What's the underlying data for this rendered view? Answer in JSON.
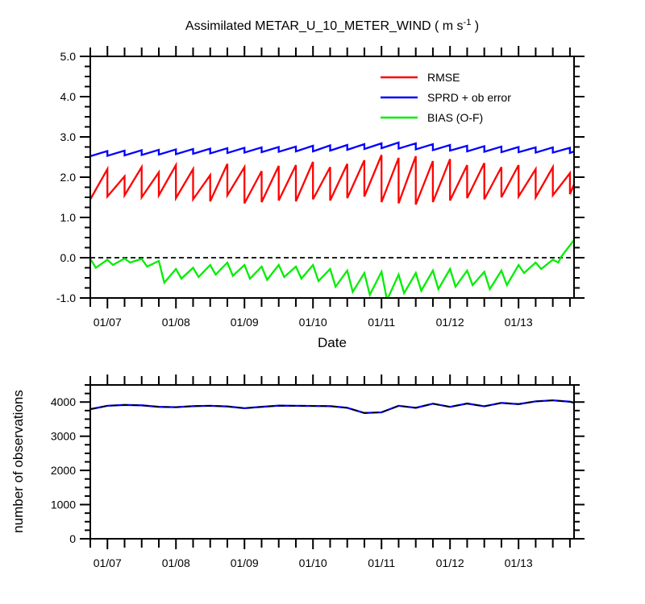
{
  "title": {
    "prefix": "Assimilated METAR_U_10_METER_WIND ( m s",
    "sup": "-1",
    "suffix": " )"
  },
  "legend": {
    "position": "upper-right-inside",
    "items": [
      {
        "label": "RMSE",
        "color": "#ff0000"
      },
      {
        "label": "SPRD + ob error",
        "color": "#0000ff"
      },
      {
        "label": "BIAS (O-F)",
        "color": "#00ee00"
      }
    ]
  },
  "chart_data": [
    {
      "type": "line",
      "panel": "top",
      "title": "Assimilated METAR_U_10_METER_WIND ( m s-1 )",
      "xlabel": "Date",
      "x_unit": "days relative to 01/07, 6-hourly assimilation cycles",
      "xlim": [
        -0.25,
        6.81
      ],
      "ylim": [
        -1.0,
        5.0
      ],
      "x_major_ticks": [
        0,
        1,
        2,
        3,
        4,
        5,
        6
      ],
      "x_tick_labels": [
        "01/07",
        "01/08",
        "01/09",
        "01/10",
        "01/11",
        "01/12",
        "01/13"
      ],
      "x_minor_step": 0.25,
      "y_major_ticks": [
        -1.0,
        0.0,
        1.0,
        2.0,
        3.0,
        4.0,
        5.0
      ],
      "y_tick_labels": [
        "-1.0",
        "0.0",
        "1.0",
        "2.0",
        "3.0",
        "4.0",
        "5.0"
      ],
      "y_minor_step": 0.25,
      "grid": false,
      "reference_line": {
        "y": 0.0,
        "style": "dashed",
        "color": "#000000"
      },
      "series": [
        {
          "name": "RMSE",
          "color": "#ff0000",
          "style": "solid",
          "points": [
            [
              -0.25,
              1.45
            ],
            [
              0,
              2.2
            ],
            [
              0,
              1.52
            ],
            [
              0.25,
              2.02
            ],
            [
              0.25,
              1.55
            ],
            [
              0.5,
              2.25
            ],
            [
              0.5,
              1.5
            ],
            [
              0.75,
              2.12
            ],
            [
              0.75,
              1.55
            ],
            [
              1,
              2.3
            ],
            [
              1,
              1.48
            ],
            [
              1.25,
              2.2
            ],
            [
              1.25,
              1.45
            ],
            [
              1.5,
              2.05
            ],
            [
              1.5,
              1.4
            ],
            [
              1.75,
              2.33
            ],
            [
              1.75,
              1.55
            ],
            [
              2,
              2.25
            ],
            [
              2,
              1.35
            ],
            [
              2.25,
              2.15
            ],
            [
              2.25,
              1.38
            ],
            [
              2.5,
              2.28
            ],
            [
              2.5,
              1.42
            ],
            [
              2.75,
              2.3
            ],
            [
              2.75,
              1.4
            ],
            [
              3,
              2.38
            ],
            [
              3,
              1.45
            ],
            [
              3.25,
              2.25
            ],
            [
              3.25,
              1.42
            ],
            [
              3.5,
              2.33
            ],
            [
              3.5,
              1.48
            ],
            [
              3.75,
              2.42
            ],
            [
              3.75,
              1.52
            ],
            [
              4,
              2.55
            ],
            [
              4,
              1.38
            ],
            [
              4.25,
              2.48
            ],
            [
              4.25,
              1.35
            ],
            [
              4.5,
              2.52
            ],
            [
              4.5,
              1.32
            ],
            [
              4.75,
              2.4
            ],
            [
              4.75,
              1.38
            ],
            [
              5,
              2.45
            ],
            [
              5,
              1.42
            ],
            [
              5.25,
              2.3
            ],
            [
              5.25,
              1.48
            ],
            [
              5.5,
              2.35
            ],
            [
              5.5,
              1.45
            ],
            [
              5.75,
              2.25
            ],
            [
              5.75,
              1.5
            ],
            [
              6,
              2.3
            ],
            [
              6,
              1.52
            ],
            [
              6.25,
              2.2
            ],
            [
              6.25,
              1.5
            ],
            [
              6.5,
              2.25
            ],
            [
              6.5,
              1.55
            ],
            [
              6.75,
              2.1
            ],
            [
              6.75,
              1.58
            ],
            [
              6.81,
              1.82
            ]
          ]
        },
        {
          "name": "SPRD + ob error",
          "color": "#0000ff",
          "style": "solid",
          "points": [
            [
              -0.25,
              2.52
            ],
            [
              0,
              2.65
            ],
            [
              0,
              2.53
            ],
            [
              0.25,
              2.66
            ],
            [
              0.25,
              2.54
            ],
            [
              0.5,
              2.67
            ],
            [
              0.5,
              2.55
            ],
            [
              0.75,
              2.68
            ],
            [
              0.75,
              2.56
            ],
            [
              1,
              2.69
            ],
            [
              1,
              2.57
            ],
            [
              1.25,
              2.7
            ],
            [
              1.25,
              2.58
            ],
            [
              1.5,
              2.71
            ],
            [
              1.5,
              2.59
            ],
            [
              1.75,
              2.72
            ],
            [
              1.75,
              2.6
            ],
            [
              2,
              2.73
            ],
            [
              2,
              2.61
            ],
            [
              2.25,
              2.74
            ],
            [
              2.25,
              2.62
            ],
            [
              2.5,
              2.75
            ],
            [
              2.5,
              2.63
            ],
            [
              2.75,
              2.76
            ],
            [
              2.75,
              2.64
            ],
            [
              3,
              2.78
            ],
            [
              3,
              2.64
            ],
            [
              3.25,
              2.79
            ],
            [
              3.25,
              2.66
            ],
            [
              3.5,
              2.8
            ],
            [
              3.5,
              2.68
            ],
            [
              3.75,
              2.82
            ],
            [
              3.75,
              2.7
            ],
            [
              4,
              2.84
            ],
            [
              4,
              2.72
            ],
            [
              4.25,
              2.86
            ],
            [
              4.25,
              2.71
            ],
            [
              4.5,
              2.84
            ],
            [
              4.5,
              2.69
            ],
            [
              4.75,
              2.82
            ],
            [
              4.75,
              2.67
            ],
            [
              5,
              2.8
            ],
            [
              5,
              2.66
            ],
            [
              5.25,
              2.78
            ],
            [
              5.25,
              2.64
            ],
            [
              5.5,
              2.77
            ],
            [
              5.5,
              2.63
            ],
            [
              5.75,
              2.76
            ],
            [
              5.75,
              2.62
            ],
            [
              6,
              2.75
            ],
            [
              6,
              2.62
            ],
            [
              6.25,
              2.74
            ],
            [
              6.25,
              2.61
            ],
            [
              6.5,
              2.74
            ],
            [
              6.5,
              2.61
            ],
            [
              6.75,
              2.73
            ],
            [
              6.75,
              2.6
            ],
            [
              6.81,
              2.64
            ]
          ]
        },
        {
          "name": "BIAS (O-F)",
          "color": "#00ee00",
          "style": "solid",
          "points": [
            [
              -0.25,
              -0.03
            ],
            [
              -0.17,
              -0.25
            ],
            [
              0,
              -0.05
            ],
            [
              0.08,
              -0.18
            ],
            [
              0.25,
              -0.02
            ],
            [
              0.33,
              -0.12
            ],
            [
              0.5,
              -0.03
            ],
            [
              0.58,
              -0.22
            ],
            [
              0.75,
              -0.08
            ],
            [
              0.83,
              -0.62
            ],
            [
              1,
              -0.28
            ],
            [
              1.08,
              -0.52
            ],
            [
              1.25,
              -0.25
            ],
            [
              1.33,
              -0.48
            ],
            [
              1.5,
              -0.18
            ],
            [
              1.58,
              -0.42
            ],
            [
              1.75,
              -0.12
            ],
            [
              1.83,
              -0.45
            ],
            [
              2,
              -0.18
            ],
            [
              2.08,
              -0.52
            ],
            [
              2.25,
              -0.22
            ],
            [
              2.33,
              -0.55
            ],
            [
              2.5,
              -0.18
            ],
            [
              2.58,
              -0.48
            ],
            [
              2.75,
              -0.22
            ],
            [
              2.83,
              -0.52
            ],
            [
              3,
              -0.18
            ],
            [
              3.08,
              -0.58
            ],
            [
              3.25,
              -0.28
            ],
            [
              3.33,
              -0.72
            ],
            [
              3.5,
              -0.32
            ],
            [
              3.58,
              -0.85
            ],
            [
              3.75,
              -0.38
            ],
            [
              3.83,
              -0.92
            ],
            [
              4,
              -0.35
            ],
            [
              4.08,
              -1.05
            ],
            [
              4.25,
              -0.42
            ],
            [
              4.33,
              -0.88
            ],
            [
              4.5,
              -0.38
            ],
            [
              4.58,
              -0.82
            ],
            [
              4.75,
              -0.32
            ],
            [
              4.83,
              -0.78
            ],
            [
              5,
              -0.28
            ],
            [
              5.08,
              -0.72
            ],
            [
              5.25,
              -0.32
            ],
            [
              5.33,
              -0.68
            ],
            [
              5.5,
              -0.35
            ],
            [
              5.58,
              -0.78
            ],
            [
              5.75,
              -0.32
            ],
            [
              5.83,
              -0.68
            ],
            [
              6,
              -0.18
            ],
            [
              6.08,
              -0.38
            ],
            [
              6.25,
              -0.12
            ],
            [
              6.33,
              -0.28
            ],
            [
              6.5,
              -0.05
            ],
            [
              6.58,
              -0.12
            ],
            [
              6.62,
              0.02
            ],
            [
              6.81,
              0.44
            ]
          ]
        }
      ]
    },
    {
      "type": "line",
      "panel": "bottom",
      "ylabel": "number of observations",
      "xlim": [
        -0.25,
        6.81
      ],
      "ylim": [
        0,
        4500
      ],
      "x_major_ticks": [
        0,
        1,
        2,
        3,
        4,
        5,
        6
      ],
      "x_tick_labels": [
        "01/07",
        "01/08",
        "01/09",
        "01/10",
        "01/11",
        "01/12",
        "01/13"
      ],
      "x_minor_step": 0.25,
      "y_major_ticks": [
        0,
        1000,
        2000,
        3000,
        4000
      ],
      "y_tick_labels": [
        "0",
        "1000",
        "2000",
        "3000",
        "4000"
      ],
      "y_minor_step": 250,
      "grid": false,
      "series": [
        {
          "name": "number of observations",
          "color": "#0000ff",
          "style": "solid",
          "points": [
            [
              -0.25,
              3790
            ],
            [
              0,
              3890
            ],
            [
              0.25,
              3915
            ],
            [
              0.5,
              3905
            ],
            [
              0.75,
              3860
            ],
            [
              1,
              3850
            ],
            [
              1.25,
              3880
            ],
            [
              1.5,
              3890
            ],
            [
              1.75,
              3870
            ],
            [
              2,
              3820
            ],
            [
              2.25,
              3860
            ],
            [
              2.5,
              3895
            ],
            [
              2.75,
              3890
            ],
            [
              3,
              3885
            ],
            [
              3.25,
              3880
            ],
            [
              3.5,
              3830
            ],
            [
              3.75,
              3680
            ],
            [
              4,
              3700
            ],
            [
              4.25,
              3890
            ],
            [
              4.5,
              3830
            ],
            [
              4.75,
              3950
            ],
            [
              5,
              3860
            ],
            [
              5.25,
              3955
            ],
            [
              5.5,
              3875
            ],
            [
              5.75,
              3975
            ],
            [
              6,
              3940
            ],
            [
              6.25,
              4020
            ],
            [
              6.5,
              4050
            ],
            [
              6.75,
              4010
            ],
            [
              6.81,
              3980
            ]
          ]
        },
        {
          "name": "number of observations (dashed overlay)",
          "color": "#000000",
          "style": "dashed",
          "points": "same_as_previous"
        }
      ]
    }
  ]
}
